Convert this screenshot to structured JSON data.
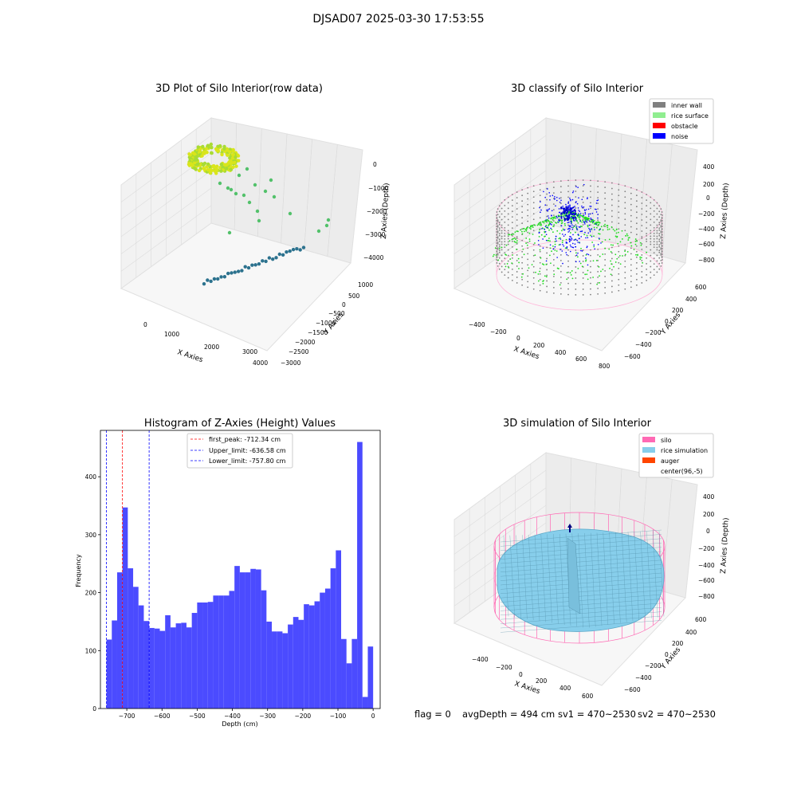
{
  "suptitle": "DJSAD07 2025-03-30 17:53:55",
  "colors": {
    "hist_bar": "#4b4bff",
    "first_peak_line": "#ff0000",
    "limit_lines": "#0000ff",
    "inner_wall": "#808080",
    "rice_surface": "#90ee90",
    "obstacle": "#ff0000",
    "noise": "#0000ff",
    "silo": "#ff69b4",
    "rice_simulation": "#87ceeb",
    "auger": "#ff4500"
  },
  "chart_data": [
    {
      "id": "raw",
      "type": "scatter",
      "projection": "3d",
      "title": "3D Plot of Silo Interior(row data)",
      "xlabel": "X Axies",
      "ylabel": "Y Axies",
      "zlabel": "Z Axies (Depth)",
      "x_ticks": [
        "0",
        "1000",
        "2000",
        "3000",
        "4000"
      ],
      "y_ticks": [
        "1000",
        "500",
        "0",
        "−500",
        "−1000",
        "−1500",
        "−2000",
        "−2500",
        "−3000"
      ],
      "z_ticks": [
        "0",
        "−1000",
        "−2000",
        "−3000",
        "−4000"
      ],
      "grid": true
    },
    {
      "id": "classify",
      "type": "scatter",
      "projection": "3d",
      "title": "3D classify of Silo Interior",
      "xlabel": "X Axies",
      "ylabel": "Y Axies",
      "zlabel": "Z Axies (Depth)",
      "x_ticks": [
        "−400",
        "−200",
        "0",
        "200",
        "400",
        "600",
        "800"
      ],
      "y_ticks": [
        "600",
        "400",
        "200",
        "0",
        "−200",
        "−400",
        "−600"
      ],
      "z_ticks": [
        "400",
        "200",
        "0",
        "−200",
        "−400",
        "−600",
        "−800"
      ],
      "legend": [
        "inner wall",
        "rice surface",
        "obstacle",
        "noise"
      ],
      "legend_loc": "upper right",
      "grid": true
    },
    {
      "id": "hist",
      "type": "bar",
      "title": "Histogram of Z-Axies (Height) Values",
      "xlabel": "Depth (cm)",
      "ylabel": "Frequency",
      "xlim": [
        -775,
        20
      ],
      "ylim": [
        0,
        480
      ],
      "x_ticks": [
        -700,
        -600,
        -500,
        -400,
        -300,
        -200,
        -100,
        0
      ],
      "y_ticks": [
        0,
        100,
        200,
        300,
        400
      ],
      "bins": {
        "start": -757.8,
        "width": 15.156,
        "values": [
          119,
          152,
          235,
          347,
          242,
          210,
          178,
          151,
          139,
          138,
          134,
          161,
          140,
          147,
          148,
          140,
          165,
          183,
          183,
          184,
          195,
          195,
          195,
          203,
          246,
          235,
          235,
          241,
          240,
          204,
          150,
          133,
          133,
          130,
          145,
          158,
          153,
          180,
          178,
          185,
          200,
          207,
          242,
          273,
          120,
          78,
          120,
          460,
          20,
          107
        ]
      },
      "vlines": [
        {
          "x": -712.34,
          "label": "first_peak: -712.34 cm",
          "color": "#ff0000"
        },
        {
          "x": -636.58,
          "label": "Upper_limit: -636.58 cm",
          "color": "#0000ff"
        },
        {
          "x": -757.8,
          "label": "Lower_limit: -757.80 cm",
          "color": "#0000ff"
        }
      ],
      "legend_loc": "upper center",
      "grid": false
    },
    {
      "id": "simulation",
      "type": "surface",
      "projection": "3d",
      "title": "3D simulation of Silo Interior",
      "xlabel": "X Axies",
      "ylabel": "Y Axies",
      "zlabel": "Z Axies (Depth)",
      "x_ticks": [
        "−400",
        "−200",
        "0",
        "200",
        "400",
        "600"
      ],
      "y_ticks": [
        "600",
        "400",
        "200",
        "0",
        "−200",
        "−400",
        "−600"
      ],
      "z_ticks": [
        "400",
        "200",
        "0",
        "−200",
        "−400",
        "−600",
        "−800"
      ],
      "legend": [
        "silo",
        "rice simulation",
        "auger",
        "center(96,-5)"
      ],
      "legend_loc": "upper right",
      "grid": true
    }
  ],
  "footer": {
    "flag": "flag = 0",
    "avg": "avgDepth = 494 cm",
    "sv1": "sv1 = 470~2530",
    "sv2": "sv2 = 470~2530"
  }
}
